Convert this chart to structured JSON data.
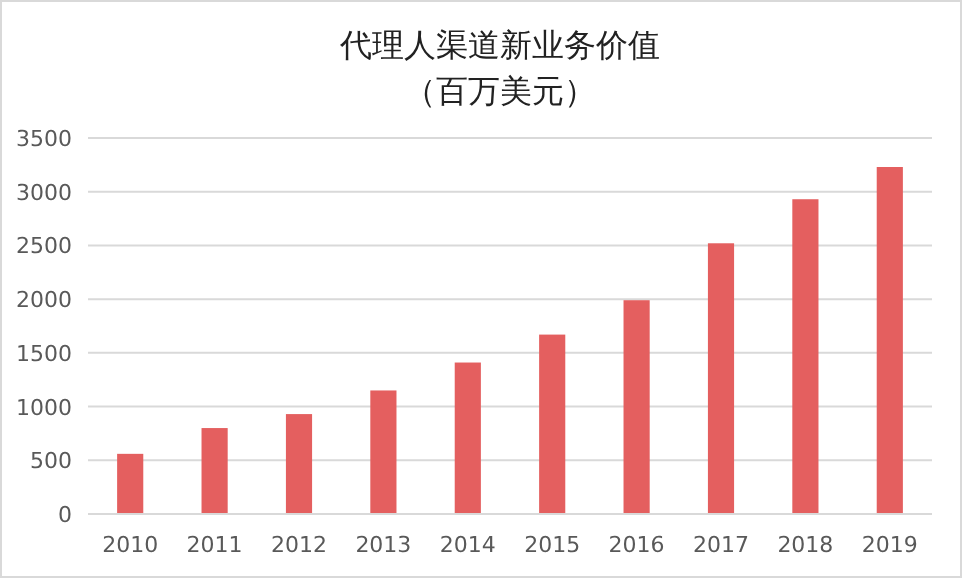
{
  "chart_data": {
    "type": "bar",
    "title": "代理人渠道新业务价值",
    "subtitle": "（百万美元）",
    "categories": [
      "2010",
      "2011",
      "2012",
      "2013",
      "2014",
      "2015",
      "2016",
      "2017",
      "2018",
      "2019"
    ],
    "values": [
      560,
      800,
      930,
      1150,
      1410,
      1670,
      1990,
      2520,
      2930,
      3230
    ],
    "color": "#e45f5f",
    "ylim": [
      0,
      3500
    ],
    "yticks": [
      0,
      500,
      1000,
      1500,
      2000,
      2500,
      3000,
      3500
    ],
    "grid": "y"
  }
}
